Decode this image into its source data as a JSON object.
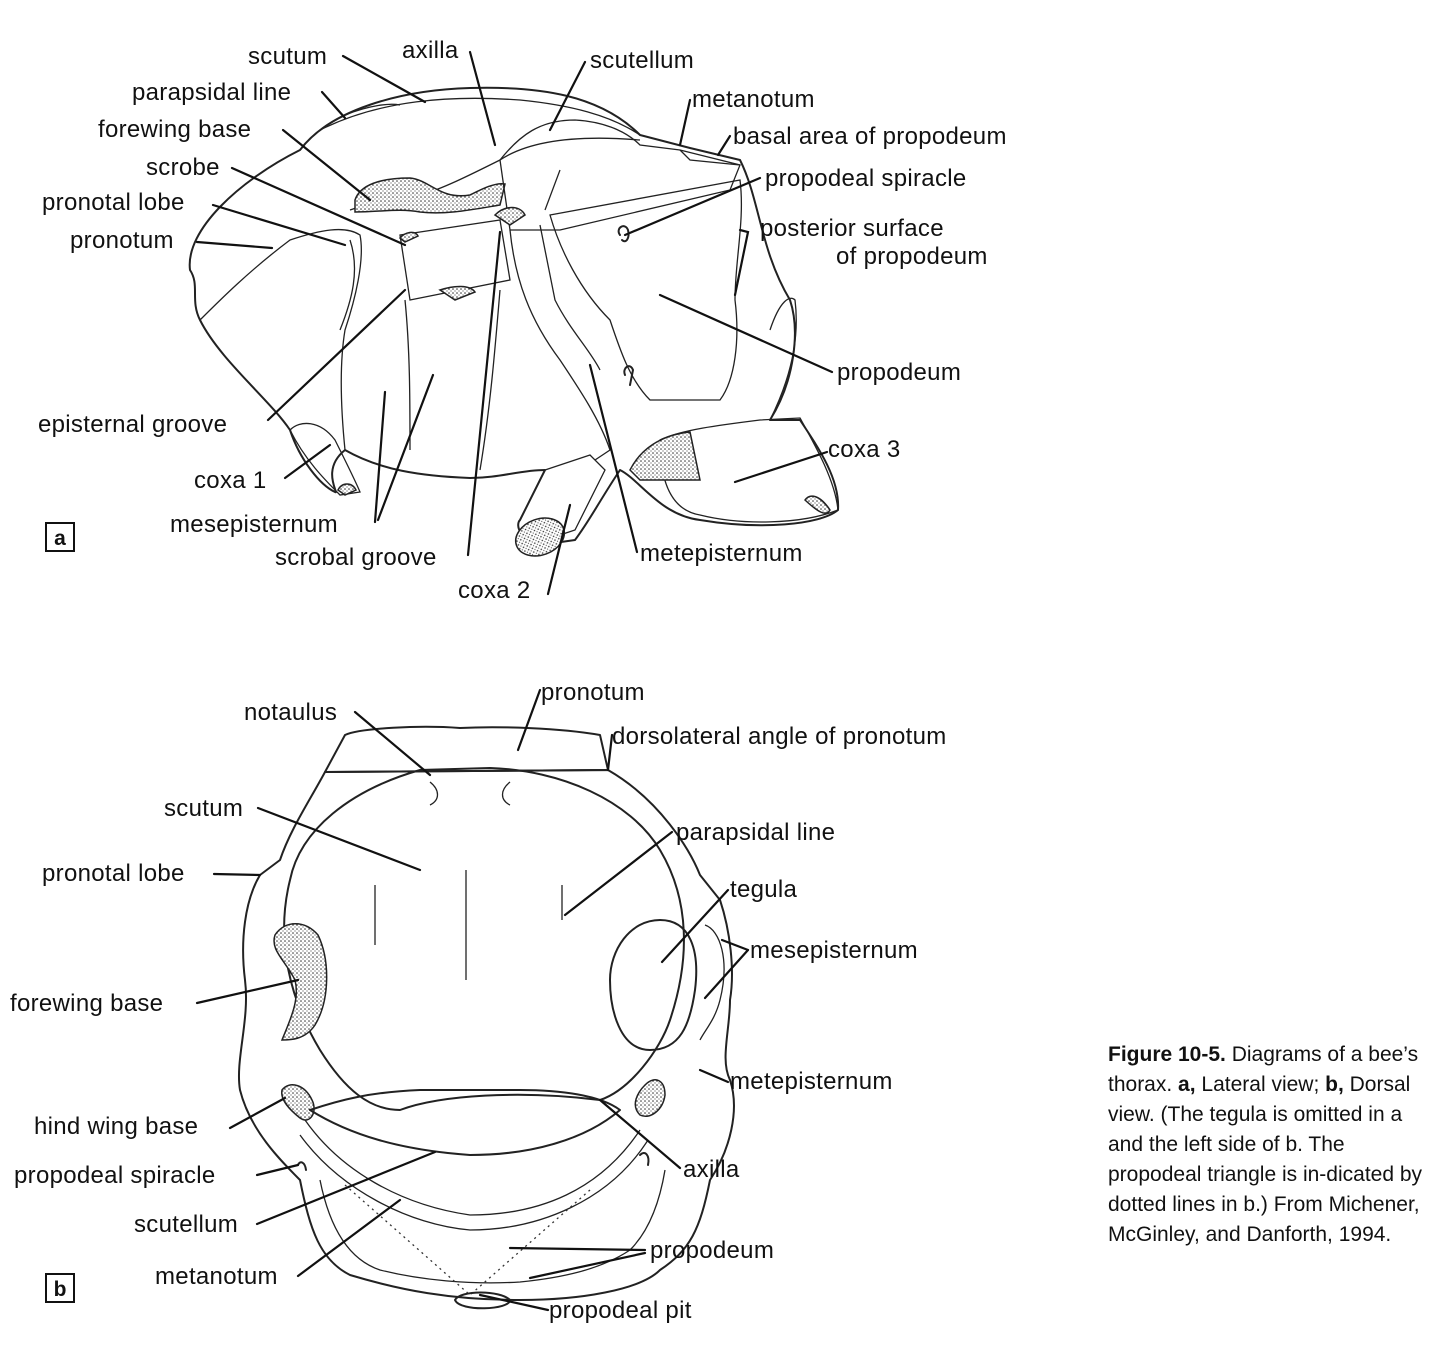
{
  "panel_a": {
    "tag": "a",
    "labels": {
      "scutum": "scutum",
      "axilla": "axilla",
      "scutellum": "scutellum",
      "parapsidal_line": "parapsidal line",
      "metanotum": "metanotum",
      "forewing_base": "forewing base",
      "basal_area": "basal area of propodeum",
      "scrobe": "scrobe",
      "propodeal_spiracle": "propodeal spiracle",
      "pronotal_lobe": "pronotal lobe",
      "posterior_surface_1": "posterior surface",
      "posterior_surface_2": "of propodeum",
      "pronotum": "pronotum",
      "propodeum": "propodeum",
      "episternal_groove": "episternal groove",
      "coxa3": "coxa 3",
      "coxa1": "coxa 1",
      "mesepisternum": "mesepisternum",
      "metepisternum": "metepisternum",
      "scrobal_groove": "scrobal groove",
      "coxa2": "coxa 2"
    }
  },
  "panel_b": {
    "tag": "b",
    "labels": {
      "pronotum": "pronotum",
      "notaulus": "notaulus",
      "dorsolateral_angle": "dorsolateral angle of pronotum",
      "scutum": "scutum",
      "parapsidal_line": "parapsidal line",
      "pronotal_lobe": "pronotal lobe",
      "tegula": "tegula",
      "mesepisternum": "mesepisternum",
      "forewing_base": "forewing base",
      "metepisternum": "metepisternum",
      "hind_wing_base": "hind wing base",
      "axilla": "axilla",
      "propodeal_spiracle": "propodeal spiracle",
      "scutellum": "scutellum",
      "propodeum": "propodeum",
      "metanotum": "metanotum",
      "propodeal_pit": "propodeal pit"
    }
  },
  "caption": {
    "figure_label": "Figure 10-5.",
    "intro": " Diagrams of a bee’s thorax. ",
    "a_label": "a,",
    "a_text": " Lateral view; ",
    "b_label": "b,",
    "b_text": " Dorsal view. (The tegula is omitted in a and the left side of b. The propodeal triangle is in-dicated by dotted lines in b.) From Michener, McGinley, and Danforth, 1994."
  }
}
